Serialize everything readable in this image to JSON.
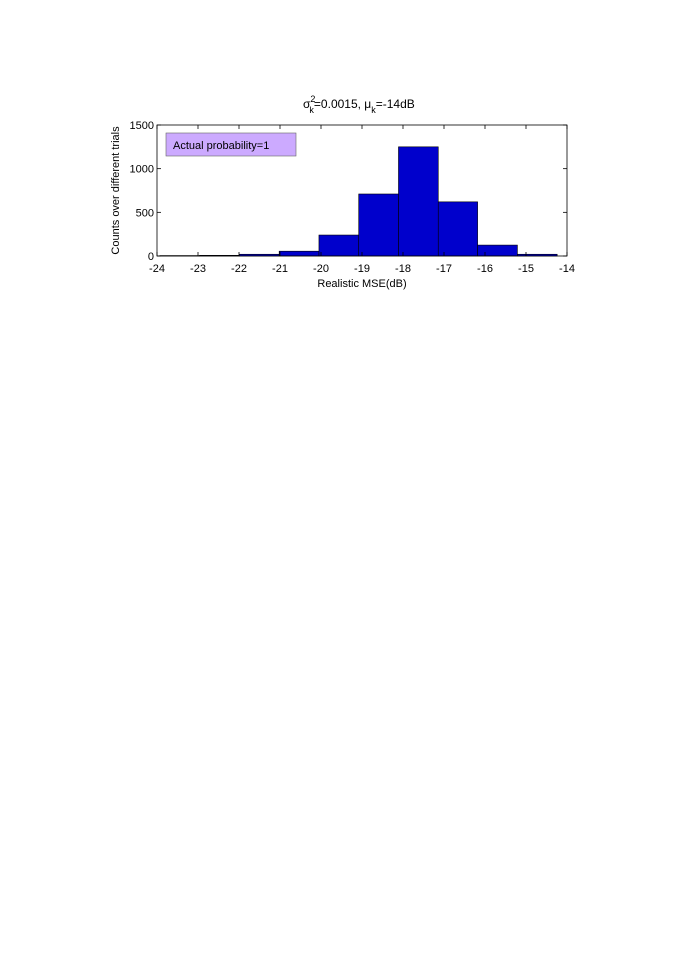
{
  "chart_data": {
    "type": "histogram",
    "title": [
      "σ",
      "2",
      "k",
      "=0.0015, μ",
      "k",
      "=-14dB"
    ],
    "xlabel": "Realistic MSE(dB)",
    "ylabel": "Counts over different trials",
    "annotation": "Actual probability=1",
    "annotation_color": "#ccaaff",
    "bins": [
      -23.93,
      -22.96,
      -21.99,
      -21.02,
      -20.05,
      -19.08,
      -18.11,
      -17.14,
      -16.18,
      -15.21,
      -14.24
    ],
    "counts": [
      5,
      8,
      20,
      55,
      240,
      710,
      1250,
      620,
      125,
      20
    ],
    "color": "#0000cc",
    "xlim": [
      -24,
      -14
    ],
    "xticks": [
      -24,
      -23,
      -22,
      -21,
      -20,
      -19,
      -18,
      -17,
      -16,
      -15,
      -14
    ],
    "ylim": [
      0,
      1500
    ],
    "yticks": [
      0,
      500,
      1000,
      1500
    ],
    "grid": false
  }
}
